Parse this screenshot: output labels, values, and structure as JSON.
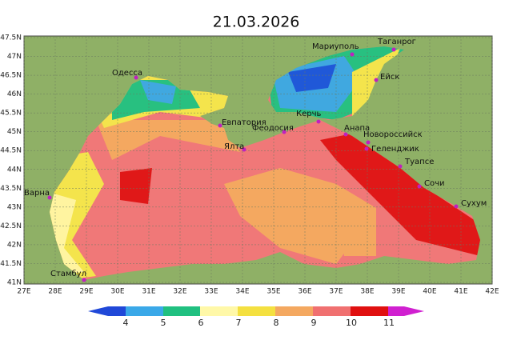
{
  "title": "21.03.2026",
  "lat_labels": [
    "47.5N",
    "47N",
    "46.5N",
    "46N",
    "45.5N",
    "45N",
    "44.5N",
    "44N",
    "43.5N",
    "43N",
    "42.5N",
    "42N",
    "41.5N",
    "41N"
  ],
  "lon_labels": [
    "27E",
    "28E",
    "29E",
    "30E",
    "31E",
    "32E",
    "33E",
    "34E",
    "35E",
    "36E",
    "37E",
    "38E",
    "39E",
    "40E",
    "41E",
    "42E"
  ],
  "cities": [
    {
      "label": "Одесса"
    },
    {
      "label": "Мариуполь"
    },
    {
      "label": "Таганрог"
    },
    {
      "label": "Ейск"
    },
    {
      "label": "Евпатория"
    },
    {
      "label": "Феодосия"
    },
    {
      "label": "Керчь"
    },
    {
      "label": "Анапа"
    },
    {
      "label": "Новороссийск"
    },
    {
      "label": "Геленджик"
    },
    {
      "label": "Ялта"
    },
    {
      "label": "Туапсе"
    },
    {
      "label": "Сочи"
    },
    {
      "label": "Сухум"
    },
    {
      "label": "Варна"
    },
    {
      "label": "Стамбул"
    }
  ],
  "legend": {
    "ticks": [
      4,
      5,
      6,
      7,
      8,
      9,
      10,
      11
    ]
  }
}
